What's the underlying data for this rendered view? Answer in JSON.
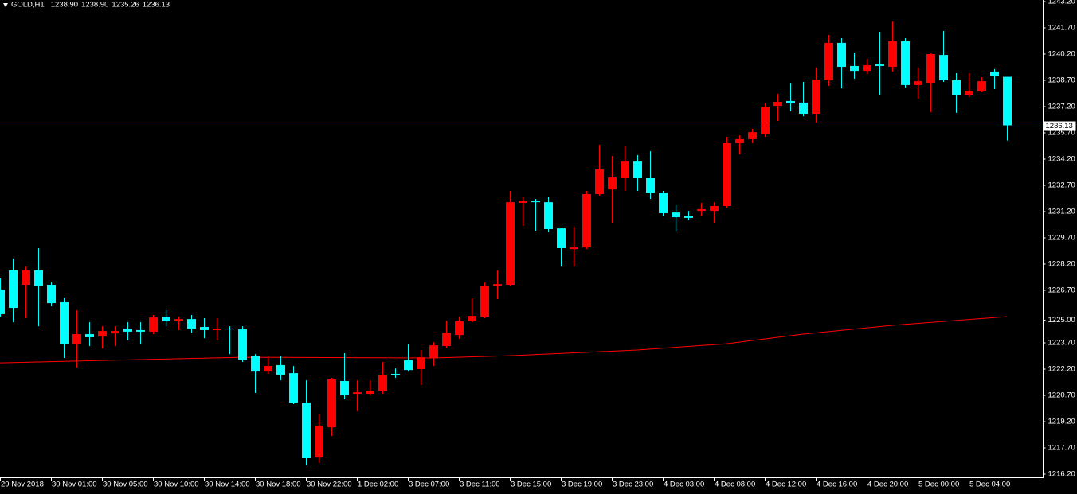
{
  "chart_data": {
    "type": "candlestick",
    "symbol": "GOLD,H1",
    "header_values": [
      "1238.90",
      "1238.90",
      "1235.26",
      "1236.13"
    ],
    "categories": [
      "29 Nov 2018",
      null,
      null,
      null,
      "30 Nov 01:00",
      null,
      null,
      null,
      "30 Nov 05:00",
      null,
      null,
      null,
      "30 Nov 10:00",
      null,
      null,
      null,
      "30 Nov 14:00",
      null,
      null,
      null,
      "30 Nov 18:00",
      null,
      null,
      null,
      "30 Nov 22:00",
      null,
      null,
      null,
      "1 Dec 02:00",
      null,
      null,
      null,
      "3 Dec 07:00",
      null,
      null,
      null,
      "3 Dec 11:00",
      null,
      null,
      null,
      "3 Dec 15:00",
      null,
      null,
      null,
      "3 Dec 19:00",
      null,
      null,
      null,
      "3 Dec 23:00",
      null,
      null,
      null,
      "4 Dec 03:00",
      null,
      null,
      null,
      "4 Dec 08:00",
      null,
      null,
      null,
      "4 Dec 12:00",
      null,
      null,
      null,
      "4 Dec 16:00",
      null,
      null,
      null,
      "4 Dec 20:00",
      null,
      null,
      null,
      "5 Dec 00:00",
      null,
      null,
      null,
      "5 Dec 04:00",
      null,
      null,
      null
    ],
    "open": [
      1226.74,
      1227.84,
      1227.02,
      1227.84,
      1227.02,
      1226.02,
      1223.65,
      1224.2,
      1224.06,
      1224.24,
      1224.52,
      1224.43,
      1224.34,
      1225.2,
      1224.93,
      1225.06,
      1224.61,
      1224.43,
      1224.52,
      1224.47,
      1222.93,
      1222.06,
      1222.43,
      1221.97,
      1220.29,
      1217.15,
      1218.88,
      1221.52,
      1220.79,
      1220.79,
      1220.97,
      1221.93,
      1222.7,
      1222.2,
      1222.84,
      1223.52,
      1224.15,
      1224.93,
      1225.2,
      1226.97,
      1227.02,
      1231.7,
      1231.79,
      1231.74,
      1230.24,
      1229.06,
      1229.15,
      1232.2,
      1232.47,
      1233.11,
      1234.06,
      1233.11,
      1232.29,
      1231.15,
      1230.93,
      1231.24,
      1231.24,
      1231.52,
      1235.11,
      1235.34,
      1235.61,
      1237.24,
      1237.52,
      1237.43,
      1236.79,
      1238.7,
      1240.84,
      1239.52,
      1239.24,
      1239.61,
      1239.47,
      1240.93,
      1238.43,
      1238.56,
      1240.15,
      1238.7,
      1237.88,
      1238.06,
      1239.2,
      1238.9
    ],
    "high": [
      1227.38,
      1228.52,
      1228.06,
      1229.11,
      1227.15,
      1226.29,
      1225.56,
      1224.88,
      1224.65,
      1224.65,
      1224.88,
      1224.88,
      1225.29,
      1225.56,
      1225.2,
      1225.29,
      1225.11,
      1225.11,
      1224.65,
      1224.65,
      1223.06,
      1222.93,
      1222.93,
      1222.38,
      1221.56,
      1219.65,
      1221.7,
      1223.11,
      1221.56,
      1221.56,
      1222.61,
      1222.24,
      1223.65,
      1223.29,
      1223.74,
      1224.97,
      1225.2,
      1226.24,
      1227.15,
      1227.84,
      1232.38,
      1232.02,
      1231.93,
      1232.02,
      1230.29,
      1230.34,
      1232.38,
      1235.02,
      1234.38,
      1234.93,
      1234.43,
      1234.65,
      1232.38,
      1231.56,
      1231.24,
      1231.7,
      1231.74,
      1235.47,
      1235.56,
      1235.93,
      1237.38,
      1237.93,
      1238.56,
      1238.61,
      1239.43,
      1241.29,
      1241.11,
      1240.29,
      1239.93,
      1241.47,
      1242.06,
      1241.11,
      1239.43,
      1240.24,
      1241.52,
      1239.11,
      1239.11,
      1238.88,
      1239.34,
      1238.9
    ],
    "low": [
      1225.2,
      1224.88,
      1225.11,
      1224.65,
      1225.79,
      1222.84,
      1222.29,
      1223.52,
      1223.38,
      1223.52,
      1223.84,
      1223.65,
      1224.2,
      1224.65,
      1224.43,
      1224.29,
      1223.97,
      1223.84,
      1223.06,
      1222.61,
      1220.84,
      1221.93,
      1221.56,
      1220.2,
      1216.7,
      1216.84,
      1218.38,
      1220.47,
      1219.79,
      1220.7,
      1220.79,
      1221.7,
      1222.06,
      1221.29,
      1222.38,
      1223.43,
      1223.93,
      1224.88,
      1225.11,
      1226.2,
      1226.93,
      1230.38,
      1230.11,
      1230.02,
      1228.06,
      1228.06,
      1229.06,
      1232.11,
      1230.56,
      1232.38,
      1232.38,
      1231.93,
      1230.93,
      1230.06,
      1230.7,
      1230.93,
      1230.56,
      1231.38,
      1234.47,
      1235.11,
      1235.47,
      1236.38,
      1236.93,
      1236.65,
      1236.29,
      1238.38,
      1238.24,
      1238.79,
      1239.06,
      1237.84,
      1239.2,
      1238.29,
      1237.65,
      1236.88,
      1238.61,
      1236.84,
      1237.74,
      1238.02,
      1238.2,
      1235.26
    ],
    "close": [
      1225.34,
      1225.7,
      1227.84,
      1226.93,
      1225.97,
      1223.65,
      1224.2,
      1224.02,
      1224.38,
      1224.38,
      1224.34,
      1224.34,
      1225.15,
      1224.93,
      1225.06,
      1224.52,
      1224.43,
      1224.52,
      1224.47,
      1222.74,
      1222.06,
      1222.38,
      1221.88,
      1220.29,
      1217.11,
      1218.97,
      1221.61,
      1220.7,
      1220.88,
      1220.97,
      1221.88,
      1221.84,
      1222.15,
      1222.88,
      1223.56,
      1224.29,
      1224.93,
      1225.24,
      1226.93,
      1227.06,
      1231.74,
      1231.79,
      1231.74,
      1230.2,
      1229.11,
      1229.15,
      1232.2,
      1233.61,
      1233.15,
      1234.06,
      1233.11,
      1232.29,
      1231.11,
      1230.88,
      1230.84,
      1231.34,
      1231.52,
      1235.11,
      1235.34,
      1235.74,
      1237.2,
      1237.47,
      1237.38,
      1236.79,
      1238.74,
      1240.84,
      1239.47,
      1239.24,
      1239.56,
      1239.52,
      1240.93,
      1238.43,
      1238.65,
      1240.2,
      1238.7,
      1237.84,
      1238.11,
      1238.65,
      1238.93,
      1236.13
    ],
    "up_color": "#ff0000",
    "down_color": "#00ffff",
    "ma": {
      "color": "#ff0000",
      "x": [
        0,
        19,
        34,
        40,
        50,
        57,
        63,
        70,
        79
      ],
      "values": [
        1222.56,
        1222.88,
        1222.84,
        1222.97,
        1223.29,
        1223.65,
        1224.2,
        1224.7,
        1225.2
      ]
    },
    "current_price": {
      "value": 1236.13,
      "label": "1236.13",
      "color": "#7f9db9"
    },
    "ylim": [
      1216.02,
      1243.29
    ],
    "yticks": [
      {
        "value": 1243.2,
        "label": "1243.20"
      },
      {
        "value": 1241.7,
        "label": "1241.70"
      },
      {
        "value": 1240.2,
        "label": "1240.20"
      },
      {
        "value": 1238.7,
        "label": "1238.70"
      },
      {
        "value": 1237.2,
        "label": "1237.20"
      },
      {
        "value": 1235.7,
        "label": "1235.70"
      },
      {
        "value": 1234.2,
        "label": "1234.20"
      },
      {
        "value": 1232.7,
        "label": "1232.70"
      },
      {
        "value": 1231.2,
        "label": "1231.20"
      },
      {
        "value": 1229.7,
        "label": "1229.70"
      },
      {
        "value": 1228.2,
        "label": "1228.20"
      },
      {
        "value": 1226.7,
        "label": "1226.70"
      },
      {
        "value": 1225.0,
        "label": "1225.00"
      },
      {
        "value": 1223.7,
        "label": "1223.70"
      },
      {
        "value": 1222.2,
        "label": "1222.20"
      },
      {
        "value": 1220.7,
        "label": "1220.70"
      },
      {
        "value": 1219.2,
        "label": "1219.20"
      },
      {
        "value": 1217.7,
        "label": "1217.70"
      },
      {
        "value": 1216.2,
        "label": "1216.20"
      }
    ]
  }
}
